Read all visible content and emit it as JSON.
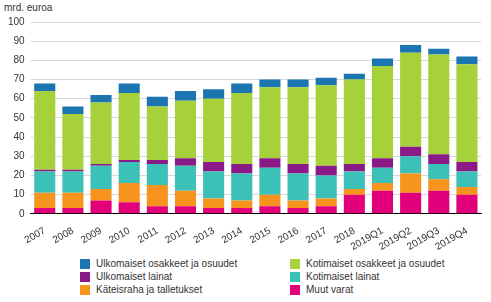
{
  "chart_data": {
    "type": "bar",
    "stacked": true,
    "y_label": "mrd. euroa",
    "categories": [
      "2007",
      "2008",
      "2009",
      "2010",
      "2011",
      "2012",
      "2013",
      "2014",
      "2015",
      "2016",
      "2017",
      "2018",
      "2019Q1",
      "2019Q2",
      "2019Q3",
      "2019Q4"
    ],
    "series": [
      {
        "name": "Muut varat",
        "color": "#e2007a",
        "values": [
          3,
          3,
          7,
          6,
          4,
          4,
          3,
          3,
          4,
          3,
          4,
          10,
          12,
          11,
          12,
          10
        ]
      },
      {
        "name": "Käteisraha ja talletukset",
        "color": "#f7941d",
        "values": [
          8,
          8,
          6,
          10,
          11,
          8,
          5,
          4,
          6,
          4,
          4,
          3,
          4,
          10,
          6,
          4
        ]
      },
      {
        "name": "Kotimaiset lainat",
        "color": "#3cc1b8",
        "values": [
          11,
          11,
          12,
          11,
          11,
          13,
          14,
          14,
          14,
          14,
          12,
          9,
          8,
          9,
          8,
          8
        ]
      },
      {
        "name": "Ulkomaiset lainat",
        "color": "#8b1a89",
        "values": [
          1,
          1,
          1,
          1,
          2,
          4,
          5,
          5,
          5,
          5,
          5,
          4,
          5,
          5,
          5,
          5
        ]
      },
      {
        "name": "Kotimaiset osakkeet ja osuudet",
        "color": "#a6d13a",
        "values": [
          41,
          29,
          32,
          35,
          28,
          30,
          33,
          37,
          37,
          40,
          42,
          44,
          48,
          49,
          52,
          51
        ]
      },
      {
        "name": "Ulkomaiset osakkeet ja osuudet",
        "color": "#1a75b0",
        "values": [
          4,
          4,
          4,
          5,
          5,
          5,
          5,
          5,
          4,
          4,
          4,
          3,
          4,
          4,
          3,
          4
        ]
      }
    ],
    "ylim": [
      0,
      100
    ],
    "yticks": [
      0,
      10,
      20,
      30,
      40,
      50,
      60,
      70,
      80,
      90,
      100
    ],
    "grid": true,
    "legend": "bottom"
  }
}
